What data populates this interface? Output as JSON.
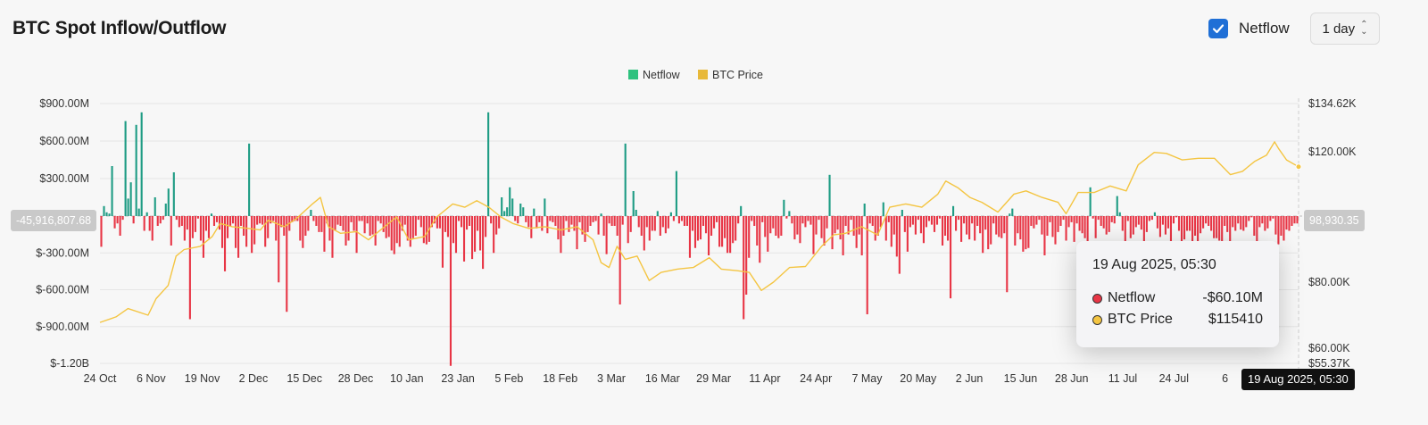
{
  "header": {
    "title": "BTC Spot Inflow/Outflow",
    "netflow_toggle": {
      "label": "Netflow",
      "checked": true
    },
    "interval": "1 day"
  },
  "chart_data": {
    "type": "bar",
    "series": [
      {
        "name": "Netflow",
        "type": "bar",
        "unit": "USD",
        "color_positive": "#1e9c84",
        "color_negative": "#e83545",
        "start_date": "2024-10-24",
        "step_days": 2,
        "values_millions": [
          -250,
          80,
          30,
          20,
          400,
          -100,
          -60,
          -160,
          -30,
          760,
          140,
          270,
          -60,
          730,
          60,
          830,
          -120,
          30,
          -120,
          -200,
          150,
          -80,
          -60,
          -30,
          100,
          220,
          -240,
          350,
          -30,
          -90,
          -80,
          -200,
          -110,
          -840,
          -180,
          -130,
          -20,
          -200,
          -340,
          -120,
          -180,
          20,
          -80,
          -50,
          -110,
          -260,
          -450,
          -180,
          -80,
          -60,
          -260,
          -340,
          -80,
          -160,
          -250,
          580,
          -300,
          -230,
          -70,
          -60,
          -70,
          -250,
          -180,
          -60,
          -40,
          -200,
          -540,
          -90,
          -160,
          -780,
          -120,
          -50,
          -40,
          -40,
          -200,
          -260,
          -160,
          -120,
          50,
          -40,
          -80,
          -130,
          -130,
          -290,
          -60,
          -200,
          -340,
          -120,
          -70,
          -80,
          -120,
          -240,
          -200,
          -50,
          -120,
          -300,
          -40,
          -40,
          -140,
          -60,
          -160,
          -150,
          -240,
          -40,
          -60,
          -130,
          -180,
          -170,
          -280,
          -310,
          -220,
          -250,
          -120,
          -70,
          -200,
          -250,
          -180,
          -160,
          -30,
          -90,
          -220,
          -230,
          -210,
          -90,
          -60,
          -100,
          -100,
          -420,
          -130,
          -170,
          -1220,
          -220,
          -300,
          -40,
          -90,
          -370,
          -110,
          -80,
          -350,
          -290,
          -120,
          -280,
          -430,
          -170,
          830,
          -60,
          -300,
          -150,
          -100,
          150,
          40,
          70,
          230,
          140,
          -40,
          -60,
          100,
          70,
          -50,
          -90,
          -180,
          60,
          -100,
          -50,
          -120,
          140,
          -140,
          -40,
          -50,
          -80,
          -190,
          -300,
          -160,
          -40,
          -130,
          -70,
          -120,
          -270,
          -50,
          -150,
          -210,
          -130,
          -80,
          -50,
          -40,
          -150,
          20,
          -160,
          -310,
          -60,
          -80,
          -80,
          -160,
          -720,
          -70,
          580,
          -220,
          -130,
          200,
          50,
          -90,
          -160,
          -280,
          -90,
          -200,
          -120,
          -120,
          40,
          -160,
          -90,
          -140,
          -100,
          30,
          -40,
          360,
          -60,
          -40,
          -80,
          -80,
          -340,
          -120,
          -260,
          -200,
          -190,
          -80,
          -140,
          -320,
          -160,
          -100,
          -50,
          -250,
          -250,
          -180,
          -300,
          -300,
          -220,
          -200,
          -60,
          80,
          -840,
          -640,
          -340,
          -40,
          -80,
          -240,
          -380,
          -50,
          -170,
          -290,
          -140,
          -100,
          -160,
          -180,
          -160,
          130,
          -20,
          40,
          -60,
          -190,
          -150,
          -220,
          -60,
          -90,
          -40,
          -70,
          -310,
          -150,
          -30,
          -180,
          -240,
          -100,
          330,
          -270,
          -140,
          -110,
          -190,
          -320,
          -80,
          -150,
          -30,
          -160,
          -260,
          -150,
          -320,
          100,
          -800,
          -60,
          -80,
          -200,
          -160,
          -90,
          110,
          -200,
          -50,
          -250,
          -150,
          -330,
          -470,
          50,
          -130,
          -290,
          -90,
          -70,
          -150,
          -30,
          -140,
          -220,
          -90,
          -40,
          -70,
          -130,
          -70,
          -20,
          -240,
          -160,
          -200,
          -670,
          80,
          -120,
          -30,
          -210,
          -60,
          -150,
          -190,
          -60,
          -200,
          -80,
          -140,
          -300,
          -110,
          -270,
          -230,
          -60,
          -150,
          -170,
          -180,
          -140,
          -620,
          20,
          60,
          -240,
          -140,
          -190,
          -290,
          -270,
          -260,
          -80,
          -100,
          -70,
          -30,
          -150,
          -320,
          -160,
          -50,
          -170,
          -230,
          -130,
          -80,
          -30,
          -200,
          -90,
          -50,
          -210,
          -60,
          -120,
          -140,
          -180,
          -280,
          230,
          -20,
          -180,
          -30,
          -80,
          -100,
          -150,
          -130,
          -50,
          -60,
          160,
          30,
          -120,
          -210,
          -40,
          -180,
          -150,
          -90,
          -70,
          -110,
          -220,
          -130,
          -40,
          -30,
          30,
          -100,
          -170,
          -70,
          -150,
          -100,
          -220,
          -60,
          -10,
          -120,
          -270,
          -190,
          -120,
          -120,
          -300,
          -160,
          -220,
          -140,
          -100,
          -60,
          -80,
          -120,
          -180,
          -180,
          -200,
          -240,
          -80,
          -130,
          -220,
          -90,
          -120,
          -60,
          -110,
          -120,
          -90,
          -40,
          -10,
          -160,
          -220,
          -90,
          -60,
          -120,
          -100,
          -40,
          -20,
          -150,
          -230,
          -160,
          -200,
          -110,
          -120,
          -80,
          -60,
          -60
        ]
      },
      {
        "name": "BTC Price",
        "type": "line",
        "unit": "USD",
        "color": "#f4c542",
        "axis": "right"
      }
    ],
    "legend": [
      "Netflow",
      "BTC Price"
    ],
    "legend_position": "top-center",
    "left_axis": {
      "ticks": [
        "$900.00M",
        "$600.00M",
        "$300.00M",
        "$-300.00M",
        "$-600.00M",
        "$-900.00M",
        "$-1.20B"
      ],
      "tick_values": [
        900,
        600,
        300,
        -300,
        -600,
        -900,
        -1200
      ],
      "ylim": [
        -1200,
        1000
      ]
    },
    "right_axis": {
      "ticks": [
        "$134.62K",
        "$120.00K",
        "$80.00K",
        "$60.00K",
        "$55.37K"
      ],
      "tick_values": [
        134620,
        120000,
        80000,
        60000,
        55370
      ],
      "ylim": [
        55370,
        134620
      ]
    },
    "x_ticks": [
      "24 Oct",
      "6 Nov",
      "19 Nov",
      "2 Dec",
      "15 Dec",
      "28 Dec",
      "10 Jan",
      "23 Jan",
      "5 Feb",
      "18 Feb",
      "3 Mar",
      "16 Mar",
      "29 Mar",
      "11 Apr",
      "24 Apr",
      "7 May",
      "20 May",
      "2 Jun",
      "15 Jun",
      "28 Jun",
      "11 Jul",
      "24 Jul",
      "6"
    ],
    "grid": true,
    "crosshair": {
      "left_label": "-45,916,807.68",
      "right_label": "98,930.35",
      "x_label": "19 Aug 2025, 05:30"
    },
    "tooltip": {
      "date": "19 Aug 2025, 05:30",
      "rows": [
        {
          "name": "Netflow",
          "value": "-$60.10M",
          "dot": "#e83545"
        },
        {
          "name": "BTC Price",
          "value": "$115410",
          "dot": "#f4c542"
        }
      ]
    },
    "btc_price_points": [
      [
        "2024-10-24",
        67800
      ],
      [
        "2024-10-28",
        69500
      ],
      [
        "2024-10-31",
        72000
      ],
      [
        "2024-11-05",
        70000
      ],
      [
        "2024-11-07",
        75000
      ],
      [
        "2024-11-10",
        79000
      ],
      [
        "2024-11-12",
        88000
      ],
      [
        "2024-11-14",
        90000
      ],
      [
        "2024-11-18",
        91000
      ],
      [
        "2024-11-21",
        94000
      ],
      [
        "2024-11-23",
        98000
      ],
      [
        "2024-11-26",
        97000
      ],
      [
        "2024-11-30",
        96500
      ],
      [
        "2024-12-03",
        96000
      ],
      [
        "2024-12-05",
        99000
      ],
      [
        "2024-12-09",
        97000
      ],
      [
        "2024-12-12",
        99500
      ],
      [
        "2024-12-16",
        104000
      ],
      [
        "2024-12-18",
        106000
      ],
      [
        "2024-12-20",
        97000
      ],
      [
        "2024-12-23",
        95000
      ],
      [
        "2024-12-27",
        95500
      ],
      [
        "2024-12-30",
        93000
      ],
      [
        "2025-01-02",
        96000
      ],
      [
        "2025-01-06",
        100000
      ],
      [
        "2025-01-09",
        93000
      ],
      [
        "2025-01-13",
        94000
      ],
      [
        "2025-01-16",
        100000
      ],
      [
        "2025-01-20",
        104000
      ],
      [
        "2025-01-23",
        103000
      ],
      [
        "2025-01-26",
        105000
      ],
      [
        "2025-01-29",
        103000
      ],
      [
        "2025-02-01",
        100000
      ],
      [
        "2025-02-04",
        98000
      ],
      [
        "2025-02-08",
        96500
      ],
      [
        "2025-02-12",
        97000
      ],
      [
        "2025-02-16",
        96000
      ],
      [
        "2025-02-20",
        97000
      ],
      [
        "2025-02-24",
        93000
      ],
      [
        "2025-02-26",
        86000
      ],
      [
        "2025-02-28",
        84500
      ],
      [
        "2025-03-02",
        91000
      ],
      [
        "2025-03-04",
        87000
      ],
      [
        "2025-03-07",
        88000
      ],
      [
        "2025-03-10",
        80500
      ],
      [
        "2025-03-13",
        83000
      ],
      [
        "2025-03-17",
        84000
      ],
      [
        "2025-03-21",
        84500
      ],
      [
        "2025-03-25",
        87500
      ],
      [
        "2025-03-28",
        84000
      ],
      [
        "2025-04-01",
        83500
      ],
      [
        "2025-04-04",
        83000
      ],
      [
        "2025-04-07",
        77500
      ],
      [
        "2025-04-10",
        80000
      ],
      [
        "2025-04-14",
        84500
      ],
      [
        "2025-04-18",
        84800
      ],
      [
        "2025-04-22",
        91000
      ],
      [
        "2025-04-25",
        94500
      ],
      [
        "2025-04-28",
        95000
      ],
      [
        "2025-05-02",
        97000
      ],
      [
        "2025-05-06",
        94500
      ],
      [
        "2025-05-09",
        103000
      ],
      [
        "2025-05-13",
        104000
      ],
      [
        "2025-05-17",
        103000
      ],
      [
        "2025-05-21",
        107000
      ],
      [
        "2025-05-23",
        111000
      ],
      [
        "2025-05-26",
        109000
      ],
      [
        "2025-05-29",
        106000
      ],
      [
        "2025-06-01",
        104500
      ],
      [
        "2025-06-05",
        101500
      ],
      [
        "2025-06-09",
        107000
      ],
      [
        "2025-06-12",
        108000
      ],
      [
        "2025-06-16",
        106000
      ],
      [
        "2025-06-20",
        104500
      ],
      [
        "2025-06-22",
        101000
      ],
      [
        "2025-06-25",
        107500
      ],
      [
        "2025-06-29",
        107500
      ],
      [
        "2025-07-03",
        109500
      ],
      [
        "2025-07-07",
        108000
      ],
      [
        "2025-07-10",
        116000
      ],
      [
        "2025-07-14",
        119800
      ],
      [
        "2025-07-17",
        119500
      ],
      [
        "2025-07-21",
        117500
      ],
      [
        "2025-07-25",
        118000
      ],
      [
        "2025-07-29",
        118000
      ],
      [
        "2025-08-02",
        113000
      ],
      [
        "2025-08-05",
        114000
      ],
      [
        "2025-08-08",
        117000
      ],
      [
        "2025-08-11",
        119000
      ],
      [
        "2025-08-13",
        123000
      ],
      [
        "2025-08-14",
        121000
      ],
      [
        "2025-08-16",
        117500
      ],
      [
        "2025-08-19",
        115410
      ]
    ]
  }
}
